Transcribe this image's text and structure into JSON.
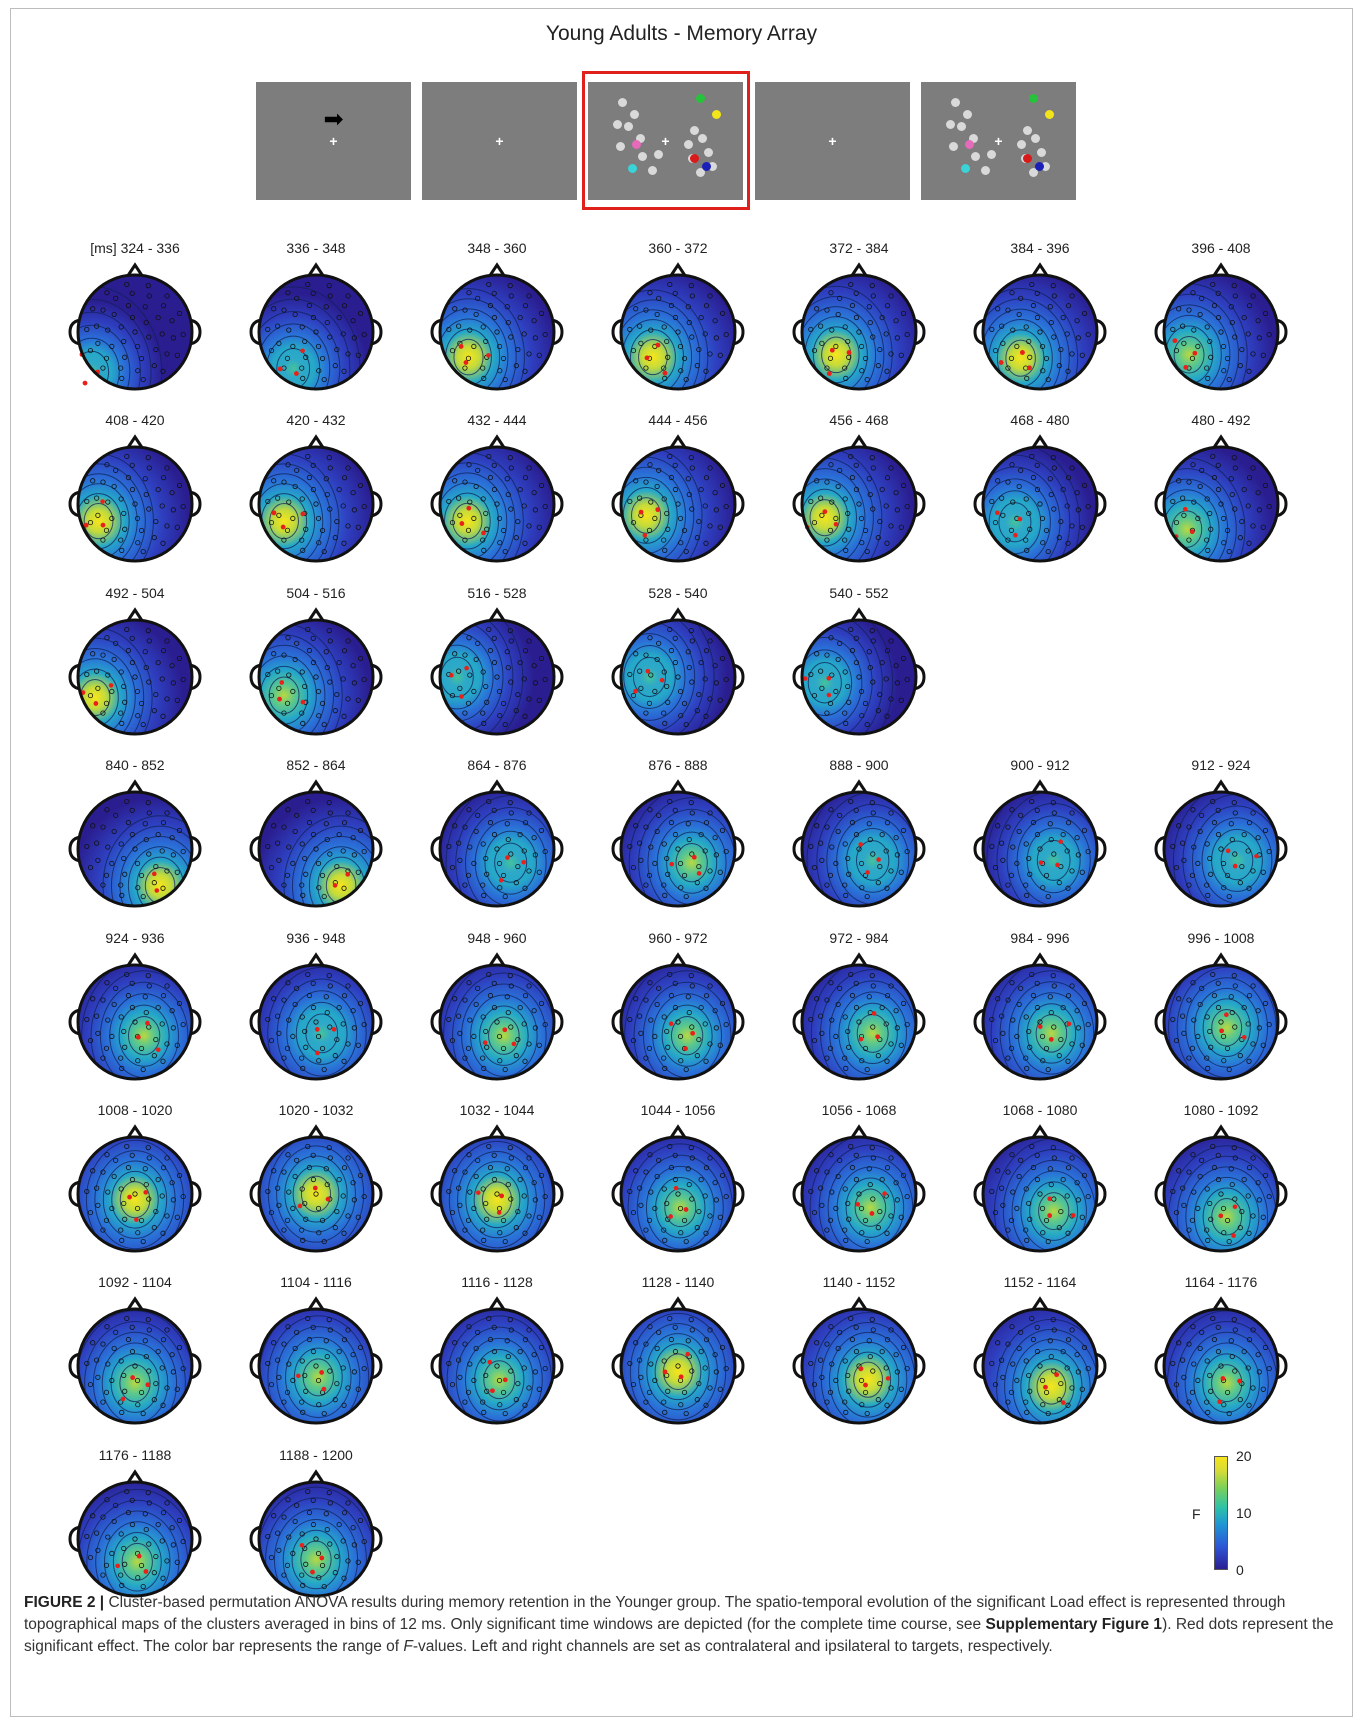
{
  "figure": {
    "title": "Young Adults - Memory Array",
    "time_unit": "[ms]",
    "colorbar": {
      "label": "F",
      "max": "20",
      "mid": "10",
      "min": "0"
    }
  },
  "sequence": [
    {
      "screen": "cue",
      "arrow": "➡",
      "fixation": "+"
    },
    {
      "screen": "fixation",
      "fixation": "+"
    },
    {
      "screen": "memory-array",
      "fixation": "+",
      "highlighted": true
    },
    {
      "screen": "fixation",
      "fixation": "+"
    },
    {
      "screen": "memory-array",
      "fixation": "+"
    }
  ],
  "panels": [
    {
      "label": "324 - 336",
      "hot": [
        0.12,
        0.85
      ],
      "peak": 0.3,
      "sig": 6
    },
    {
      "label": "336 - 348",
      "hot": [
        0.3,
        0.82
      ],
      "peak": 0.45,
      "sig": 5
    },
    {
      "label": "348 - 360",
      "hot": [
        0.25,
        0.72
      ],
      "peak": 0.95,
      "sig": 5
    },
    {
      "label": "360 - 372",
      "hot": [
        0.28,
        0.72
      ],
      "peak": 1.0,
      "sig": 6
    },
    {
      "label": "372 - 384",
      "hot": [
        0.3,
        0.7
      ],
      "peak": 0.95,
      "sig": 6
    },
    {
      "label": "384 - 396",
      "hot": [
        0.33,
        0.73
      ],
      "peak": 0.9,
      "sig": 7
    },
    {
      "label": "396 - 408",
      "hot": [
        0.22,
        0.7
      ],
      "peak": 0.85,
      "sig": 6
    },
    {
      "label": "408 - 420",
      "hot": [
        0.18,
        0.65
      ],
      "peak": 1.0,
      "sig": 5
    },
    {
      "label": "420 - 432",
      "hot": [
        0.22,
        0.65
      ],
      "peak": 1.0,
      "sig": 5
    },
    {
      "label": "432 - 444",
      "hot": [
        0.24,
        0.65
      ],
      "peak": 0.95,
      "sig": 5
    },
    {
      "label": "444 - 456",
      "hot": [
        0.22,
        0.6
      ],
      "peak": 0.95,
      "sig": 5
    },
    {
      "label": "456 - 468",
      "hot": [
        0.2,
        0.62
      ],
      "peak": 0.9,
      "sig": 4
    },
    {
      "label": "468 - 480",
      "hot": [
        0.28,
        0.66
      ],
      "peak": 0.55,
      "sig": 3
    },
    {
      "label": "480 - 492",
      "hot": [
        0.2,
        0.72
      ],
      "peak": 0.85,
      "sig": 4
    },
    {
      "label": "492 - 504",
      "hot": [
        0.15,
        0.68
      ],
      "peak": 0.9,
      "sig": 4
    },
    {
      "label": "504 - 516",
      "hot": [
        0.22,
        0.66
      ],
      "peak": 0.85,
      "sig": 4
    },
    {
      "label": "516 - 528",
      "hot": [
        0.15,
        0.5
      ],
      "peak": 0.5,
      "sig": 3
    },
    {
      "label": "528 - 540",
      "hot": [
        0.25,
        0.5
      ],
      "peak": 0.55,
      "sig": 3
    },
    {
      "label": "540 - 552",
      "hot": [
        0.2,
        0.55
      ],
      "peak": 0.4,
      "sig": 3
    },
    null,
    null,
    {
      "label": "840 - 852",
      "hot": [
        0.72,
        0.82
      ],
      "peak": 0.9,
      "sig": 2
    },
    {
      "label": "852 - 864",
      "hot": [
        0.72,
        0.82
      ],
      "peak": 0.9,
      "sig": 2
    },
    {
      "label": "864 - 876",
      "hot": [
        0.62,
        0.62
      ],
      "peak": 0.55,
      "sig": 3
    },
    {
      "label": "876 - 888",
      "hot": [
        0.62,
        0.62
      ],
      "peak": 0.65,
      "sig": 4
    },
    {
      "label": "888 - 900",
      "hot": [
        0.62,
        0.6
      ],
      "peak": 0.5,
      "sig": 3
    },
    {
      "label": "900 - 912",
      "hot": [
        0.62,
        0.6
      ],
      "peak": 0.45,
      "sig": 3
    },
    {
      "label": "912 - 924",
      "hot": [
        0.64,
        0.6
      ],
      "peak": 0.6,
      "sig": 4
    },
    {
      "label": "924 - 936",
      "hot": [
        0.58,
        0.62
      ],
      "peak": 0.65,
      "sig": 4
    },
    {
      "label": "936 - 948",
      "hot": [
        0.55,
        0.6
      ],
      "peak": 0.6,
      "sig": 4
    },
    {
      "label": "948 - 960",
      "hot": [
        0.56,
        0.62
      ],
      "peak": 0.75,
      "sig": 4
    },
    {
      "label": "960 - 972",
      "hot": [
        0.58,
        0.62
      ],
      "peak": 0.65,
      "sig": 4
    },
    {
      "label": "972 - 984",
      "hot": [
        0.62,
        0.6
      ],
      "peak": 0.7,
      "sig": 4
    },
    {
      "label": "984 - 996",
      "hot": [
        0.6,
        0.6
      ],
      "peak": 0.75,
      "sig": 4
    },
    {
      "label": "996 - 1008",
      "hot": [
        0.55,
        0.55
      ],
      "peak": 0.85,
      "sig": 4
    },
    {
      "label": "1008 - 1020",
      "hot": [
        0.5,
        0.55
      ],
      "peak": 0.9,
      "sig": 4
    },
    {
      "label": "1020 - 1032",
      "hot": [
        0.5,
        0.5
      ],
      "peak": 0.95,
      "sig": 4
    },
    {
      "label": "1032 - 1044",
      "hot": [
        0.5,
        0.55
      ],
      "peak": 0.95,
      "sig": 4
    },
    {
      "label": "1044 - 1056",
      "hot": [
        0.52,
        0.62
      ],
      "peak": 0.7,
      "sig": 4
    },
    {
      "label": "1056 - 1068",
      "hot": [
        0.6,
        0.62
      ],
      "peak": 0.75,
      "sig": 4
    },
    {
      "label": "1068 - 1080",
      "hot": [
        0.62,
        0.65
      ],
      "peak": 0.8,
      "sig": 4
    },
    {
      "label": "1080 - 1092",
      "hot": [
        0.55,
        0.7
      ],
      "peak": 0.85,
      "sig": 4
    },
    {
      "label": "1092 - 1104",
      "hot": [
        0.5,
        0.65
      ],
      "peak": 0.8,
      "sig": 5
    },
    {
      "label": "1104 - 1116",
      "hot": [
        0.52,
        0.6
      ],
      "peak": 0.8,
      "sig": 5
    },
    {
      "label": "1116 - 1128",
      "hot": [
        0.52,
        0.62
      ],
      "peak": 0.7,
      "sig": 5
    },
    {
      "label": "1128 - 1140",
      "hot": [
        0.5,
        0.55
      ],
      "peak": 0.95,
      "sig": 5
    },
    {
      "label": "1140 - 1152",
      "hot": [
        0.58,
        0.62
      ],
      "peak": 1.0,
      "sig": 5
    },
    {
      "label": "1152 - 1164",
      "hot": [
        0.6,
        0.68
      ],
      "peak": 1.0,
      "sig": 5
    },
    {
      "label": "1164 - 1176",
      "hot": [
        0.55,
        0.65
      ],
      "peak": 0.8,
      "sig": 5
    },
    {
      "label": "1176 - 1188",
      "hot": [
        0.52,
        0.7
      ],
      "peak": 0.8,
      "sig": 5
    },
    {
      "label": "1188 - 1200",
      "hot": [
        0.5,
        0.68
      ],
      "peak": 0.8,
      "sig": 5
    }
  ],
  "caption": {
    "figure_label": "FIGURE 2 |",
    "part1": " Cluster-based permutation ANOVA results during memory retention in the Younger group. The spatio-temporal evolution of the significant Load effect is represented through topographical maps of the clusters averaged in bins of 12 ms. Only significant time windows are depicted (for the complete time course, see ",
    "supp": "Supplementary Figure 1",
    "part2": "). Red dots represent the significant effect. The color bar represents the range of ",
    "f_italic": "F",
    "part3": "-values. Left and right channels are set as contralateral and ipsilateral to targets, respectively."
  }
}
